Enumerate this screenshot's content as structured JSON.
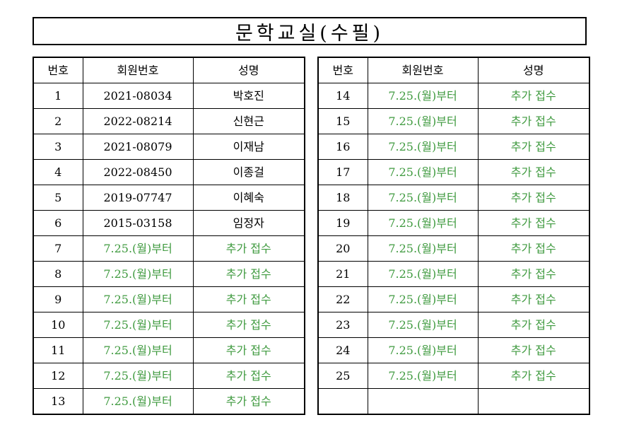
{
  "document": {
    "title": "문학교실(수필)",
    "headers": {
      "number": "번호",
      "member_id": "회원번호",
      "name": "성명"
    },
    "colors": {
      "pending_text": "#3f9a3f",
      "border": "#000000"
    },
    "left_table": {
      "rows": [
        {
          "number": "1",
          "member_id": "2021-08034",
          "name": "박호진",
          "status": "registered"
        },
        {
          "number": "2",
          "member_id": "2022-08214",
          "name": "신현근",
          "status": "registered"
        },
        {
          "number": "3",
          "member_id": "2021-08079",
          "name": "이재남",
          "status": "registered"
        },
        {
          "number": "4",
          "member_id": "2022-08450",
          "name": "이종걸",
          "status": "registered"
        },
        {
          "number": "5",
          "member_id": "2019-07747",
          "name": "이혜숙",
          "status": "registered"
        },
        {
          "number": "6",
          "member_id": "2015-03158",
          "name": "임정자",
          "status": "registered"
        },
        {
          "number": "7",
          "member_id": "7.25.(월)부터",
          "name": "추가 접수",
          "status": "pending"
        },
        {
          "number": "8",
          "member_id": "7.25.(월)부터",
          "name": "추가 접수",
          "status": "pending"
        },
        {
          "number": "9",
          "member_id": "7.25.(월)부터",
          "name": "추가 접수",
          "status": "pending"
        },
        {
          "number": "10",
          "member_id": "7.25.(월)부터",
          "name": "추가 접수",
          "status": "pending"
        },
        {
          "number": "11",
          "member_id": "7.25.(월)부터",
          "name": "추가 접수",
          "status": "pending"
        },
        {
          "number": "12",
          "member_id": "7.25.(월)부터",
          "name": "추가 접수",
          "status": "pending"
        },
        {
          "number": "13",
          "member_id": "7.25.(월)부터",
          "name": "추가 접수",
          "status": "pending"
        }
      ]
    },
    "right_table": {
      "rows": [
        {
          "number": "14",
          "member_id": "7.25.(월)부터",
          "name": "추가 접수",
          "status": "pending"
        },
        {
          "number": "15",
          "member_id": "7.25.(월)부터",
          "name": "추가 접수",
          "status": "pending"
        },
        {
          "number": "16",
          "member_id": "7.25.(월)부터",
          "name": "추가 접수",
          "status": "pending"
        },
        {
          "number": "17",
          "member_id": "7.25.(월)부터",
          "name": "추가 접수",
          "status": "pending"
        },
        {
          "number": "18",
          "member_id": "7.25.(월)부터",
          "name": "추가 접수",
          "status": "pending"
        },
        {
          "number": "19",
          "member_id": "7.25.(월)부터",
          "name": "추가 접수",
          "status": "pending"
        },
        {
          "number": "20",
          "member_id": "7.25.(월)부터",
          "name": "추가 접수",
          "status": "pending"
        },
        {
          "number": "21",
          "member_id": "7.25.(월)부터",
          "name": "추가 접수",
          "status": "pending"
        },
        {
          "number": "22",
          "member_id": "7.25.(월)부터",
          "name": "추가 접수",
          "status": "pending"
        },
        {
          "number": "23",
          "member_id": "7.25.(월)부터",
          "name": "추가 접수",
          "status": "pending"
        },
        {
          "number": "24",
          "member_id": "7.25.(월)부터",
          "name": "추가 접수",
          "status": "pending"
        },
        {
          "number": "25",
          "member_id": "7.25.(월)부터",
          "name": "추가 접수",
          "status": "pending"
        },
        {
          "number": "",
          "member_id": "",
          "name": "",
          "status": "empty"
        }
      ]
    }
  }
}
